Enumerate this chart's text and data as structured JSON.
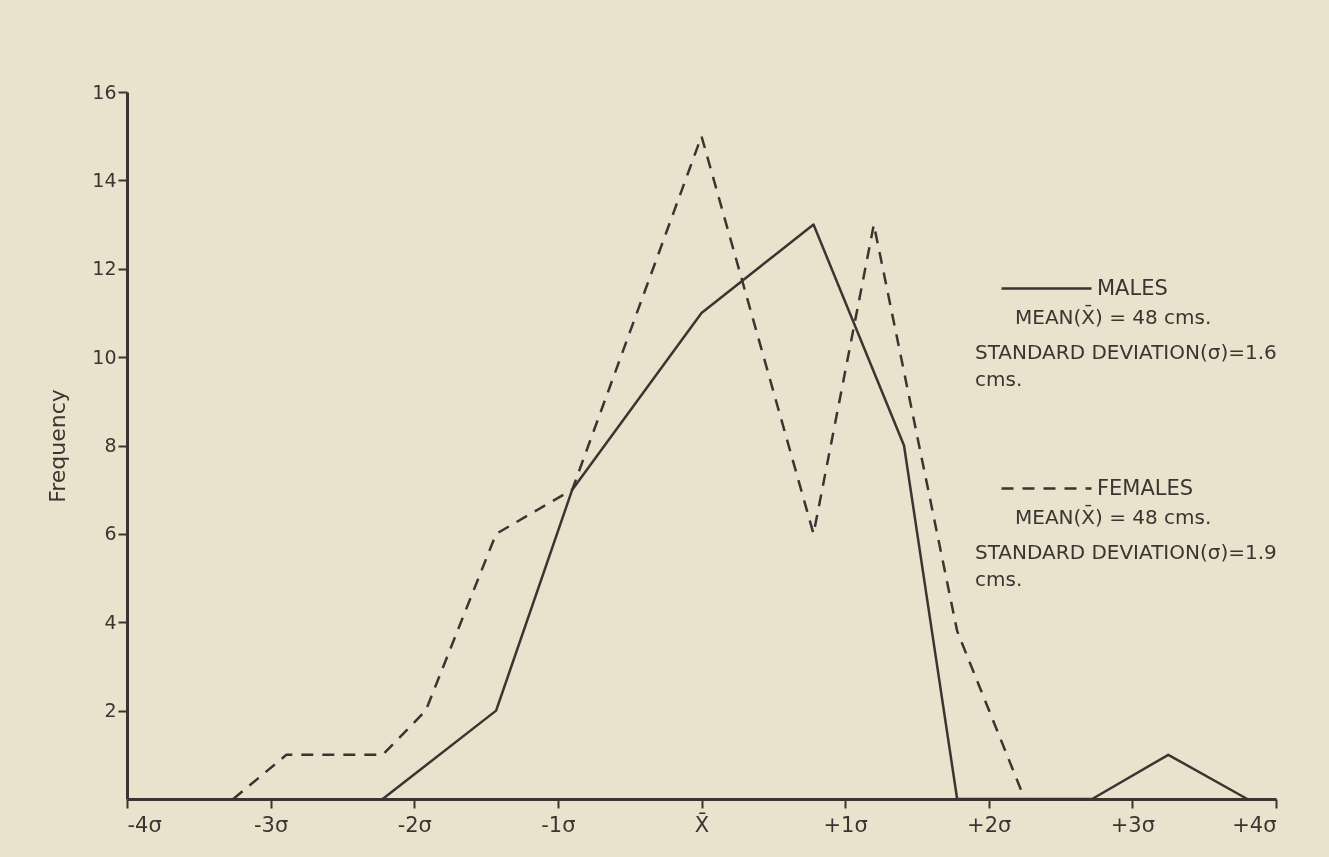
{
  "chart_data": {
    "type": "line",
    "ylabel": "Frequency",
    "xlim": [
      -4,
      4
    ],
    "ylim": [
      0,
      16
    ],
    "xticks": [
      {
        "value": -4,
        "label": "-4σ"
      },
      {
        "value": -3,
        "label": "-3σ"
      },
      {
        "value": -2,
        "label": "-2σ"
      },
      {
        "value": -1,
        "label": "-1σ"
      },
      {
        "value": 0,
        "label": "X̄"
      },
      {
        "value": 1,
        "label": "+1σ"
      },
      {
        "value": 2,
        "label": "+2σ"
      },
      {
        "value": 3,
        "label": "+3σ"
      },
      {
        "value": 4,
        "label": "+4σ"
      }
    ],
    "yticks": [
      2,
      4,
      6,
      8,
      10,
      12,
      14,
      16
    ],
    "grid": false,
    "legend": "right",
    "marker": "none",
    "series": [
      {
        "name": "MALES",
        "color": "#3a3530",
        "line_style": "solid",
        "x": [
          -2.22,
          -1.43,
          -0.9,
          0,
          0.78,
          1.41,
          1.78,
          2.72,
          3.25,
          3.8
        ],
        "values": [
          0,
          2,
          7,
          11,
          13,
          8,
          0,
          0,
          1,
          0
        ]
      },
      {
        "name": "FEMALES",
        "color": "#3a3530",
        "line_style": "dashed",
        "x": [
          -3.26,
          -2.89,
          -2.22,
          -1.92,
          -1.43,
          -0.9,
          0,
          0.78,
          1.2,
          1.78,
          2.25
        ],
        "values": [
          0,
          1,
          1,
          2,
          6,
          7,
          15,
          6,
          13,
          3.8,
          0
        ]
      }
    ],
    "annotations": [
      "MEAN(X̄) = 48 cms.",
      "STANDARD DEVIATION(σ)=1.6 cms.",
      "MEAN(X̄) = 48 cms.",
      "STANDARD DEVIATION(σ)=1.9 cms."
    ]
  }
}
